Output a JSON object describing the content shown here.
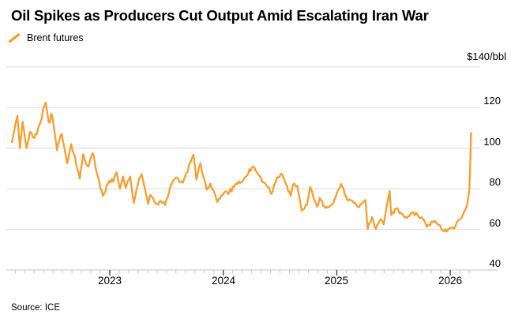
{
  "meta": {
    "title": "Oil Spikes as Producers Cut Output Amid Escalating Iran War",
    "source": "Source: ICE"
  },
  "legend": {
    "label": "Brent futures"
  },
  "colors": {
    "line": "#F79E2F",
    "grid": "#DBDBDB",
    "axis_line": "#C4C4C4",
    "tick_minor": "#C4C4C4",
    "tick_major": "#3A3A3A",
    "text": "#000000"
  },
  "chart_data": {
    "type": "line",
    "title": "Oil Spikes as Producers Cut Output Amid Escalating Iran War",
    "series_name": "Brent futures",
    "source": "Source: ICE",
    "y_axis": {
      "side": "right",
      "top_label": "$140/bbl",
      "ticks": [
        120,
        100,
        80,
        60,
        40
      ],
      "tick_labels": [
        "120",
        "100",
        "80",
        "60",
        "40"
      ],
      "gridline_values": [
        140,
        120,
        100,
        80,
        60
      ],
      "range": [
        40,
        140
      ],
      "grid": true
    },
    "x_axis": {
      "tick_labels": [
        "2023",
        "2024",
        "2025",
        "2026"
      ],
      "years": [
        2023,
        2024,
        2025,
        2026
      ],
      "minor_ticks": "monthly",
      "range_decimal_years": [
        2022.14,
        2026.19
      ]
    },
    "points": [
      [
        "2022-02-21",
        103
      ],
      [
        "2022-03-02",
        112
      ],
      [
        "2022-03-08",
        116
      ],
      [
        "2022-03-16",
        100
      ],
      [
        "2022-03-25",
        113
      ],
      [
        "2022-04-07",
        100
      ],
      [
        "2022-04-18",
        108
      ],
      [
        "2022-05-01",
        105
      ],
      [
        "2022-05-17",
        111
      ],
      [
        "2022-06-08",
        122.5
      ],
      [
        "2022-06-17",
        113
      ],
      [
        "2022-06-29",
        116
      ],
      [
        "2022-07-14",
        99
      ],
      [
        "2022-07-29",
        107
      ],
      [
        "2022-08-16",
        92.5
      ],
      [
        "2022-08-29",
        102
      ],
      [
        "2022-09-26",
        85
      ],
      [
        "2022-10-07",
        97
      ],
      [
        "2022-10-24",
        91
      ],
      [
        "2022-11-07",
        97.5
      ],
      [
        "2022-11-28",
        83.5
      ],
      [
        "2022-12-09",
        76.5
      ],
      [
        "2022-12-30",
        84
      ],
      [
        "2023-01-12",
        83.5
      ],
      [
        "2023-01-23",
        88
      ],
      [
        "2023-02-03",
        80
      ],
      [
        "2023-02-13",
        86
      ],
      [
        "2023-02-22",
        80.5
      ],
      [
        "2023-03-06",
        86
      ],
      [
        "2023-03-17",
        73
      ],
      [
        "2023-04-04",
        85
      ],
      [
        "2023-04-12",
        87.3
      ],
      [
        "2023-05-03",
        72.5
      ],
      [
        "2023-05-10",
        77
      ],
      [
        "2023-05-31",
        72.5
      ],
      [
        "2023-06-13",
        74
      ],
      [
        "2023-06-27",
        72
      ],
      [
        "2023-07-13",
        81
      ],
      [
        "2023-07-31",
        85.5
      ],
      [
        "2023-08-23",
        83
      ],
      [
        "2023-09-27",
        96.8
      ],
      [
        "2023-10-06",
        84.5
      ],
      [
        "2023-10-19",
        92.5
      ],
      [
        "2023-11-08",
        79.5
      ],
      [
        "2023-11-20",
        82.5
      ],
      [
        "2023-12-12",
        73.5
      ],
      [
        "2024-01-03",
        78
      ],
      [
        "2024-01-17",
        77.5
      ],
      [
        "2024-02-09",
        82
      ],
      [
        "2024-03-01",
        83.5
      ],
      [
        "2024-04-05",
        91
      ],
      [
        "2024-04-22",
        87
      ],
      [
        "2024-05-15",
        82.5
      ],
      [
        "2024-06-04",
        77.5
      ],
      [
        "2024-06-21",
        85.5
      ],
      [
        "2024-07-05",
        87.5
      ],
      [
        "2024-07-19",
        82.5
      ],
      [
        "2024-08-05",
        76.5
      ],
      [
        "2024-08-12",
        82
      ],
      [
        "2024-08-26",
        81.5
      ],
      [
        "2024-09-10",
        69.2
      ],
      [
        "2024-09-27",
        72
      ],
      [
        "2024-10-07",
        80.9
      ],
      [
        "2024-10-29",
        71.1
      ],
      [
        "2024-11-07",
        75.5
      ],
      [
        "2024-11-18",
        71.5
      ],
      [
        "2024-12-06",
        71
      ],
      [
        "2024-12-20",
        72.9
      ],
      [
        "2025-01-15",
        82.3
      ],
      [
        "2025-02-03",
        75
      ],
      [
        "2025-02-25",
        73
      ],
      [
        "2025-03-12",
        70.9
      ],
      [
        "2025-04-02",
        74.5
      ],
      [
        "2025-04-09",
        60.1
      ],
      [
        "2025-04-23",
        66
      ],
      [
        "2025-05-05",
        60.2
      ],
      [
        "2025-05-21",
        65
      ],
      [
        "2025-05-30",
        62.5
      ],
      [
        "2025-06-13",
        74.2
      ],
      [
        "2025-06-19",
        78.9
      ],
      [
        "2025-06-24",
        67.1
      ],
      [
        "2025-07-11",
        70.4
      ],
      [
        "2025-07-29",
        67.7
      ],
      [
        "2025-08-13",
        65.6
      ],
      [
        "2025-08-28",
        68.1
      ],
      [
        "2025-09-16",
        67.5
      ],
      [
        "2025-09-30",
        66.0
      ],
      [
        "2025-10-17",
        61.3
      ],
      [
        "2025-11-05",
        63.9
      ],
      [
        "2025-11-21",
        62.5
      ],
      [
        "2025-12-12",
        59.0
      ],
      [
        "2025-12-29",
        60.5
      ],
      [
        "2026-01-12",
        60.2
      ],
      [
        "2026-01-26",
        64.5
      ],
      [
        "2026-02-09",
        66.2
      ],
      [
        "2026-02-18",
        69.5
      ],
      [
        "2026-02-25",
        72
      ],
      [
        "2026-03-02",
        80
      ],
      [
        "2026-03-05",
        95
      ],
      [
        "2026-03-07",
        107.5
      ]
    ]
  }
}
